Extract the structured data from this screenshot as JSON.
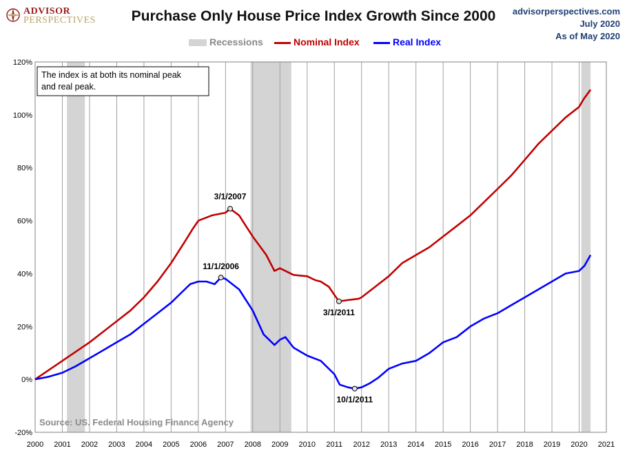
{
  "header": {
    "brand_line1": "ADVISOR",
    "brand_line2": "PERSPECTIVES",
    "title": "Purchase Only House Price Index Growth Since 2000",
    "site": "advisorperspectives.com",
    "date": "July 2020",
    "as_of": "As of May 2020"
  },
  "legend": {
    "recessions": "Recessions",
    "nominal": "Nominal Index",
    "real": "Real Index"
  },
  "colors": {
    "nominal": "#c00000",
    "real": "#0000ff",
    "recession": "#d4d4d4",
    "grid": "#a0a0a0",
    "brand_red": "#9b1c1c",
    "brand_gold": "#b9a36a",
    "site_blue": "#1f3f73"
  },
  "annotation_box": "The index is at both its nominal peak and real peak.",
  "source": "Source: US. Federal Housing Finance Agency",
  "chart_data": {
    "type": "line",
    "title": "Purchase Only House Price Index Growth Since 2000",
    "xlim": [
      2000,
      2021
    ],
    "ylim": [
      -20,
      120
    ],
    "x_ticks": [
      2000,
      2001,
      2002,
      2003,
      2004,
      2005,
      2006,
      2007,
      2008,
      2009,
      2010,
      2011,
      2012,
      2013,
      2014,
      2015,
      2016,
      2017,
      2018,
      2019,
      2020,
      2021
    ],
    "y_ticks": [
      -20,
      0,
      20,
      40,
      60,
      80,
      100,
      120
    ],
    "y_tick_labels": [
      "-20%",
      "0%",
      "20%",
      "40%",
      "60%",
      "80%",
      "100%",
      "120%"
    ],
    "grid": "vertical",
    "legend_position": "top-center",
    "recessions": [
      [
        2001.17,
        2001.83
      ],
      [
        2007.92,
        2009.42
      ],
      [
        2020.08,
        2020.42
      ]
    ],
    "series": [
      {
        "name": "Nominal Index",
        "x": [
          2000.0,
          2000.5,
          2001.0,
          2001.5,
          2002.0,
          2002.5,
          2003.0,
          2003.5,
          2004.0,
          2004.5,
          2005.0,
          2005.5,
          2005.8,
          2006.0,
          2006.5,
          2007.0,
          2007.17,
          2007.5,
          2007.75,
          2008.0,
          2008.5,
          2008.8,
          2009.0,
          2009.5,
          2010.0,
          2010.3,
          2010.5,
          2010.8,
          2011.0,
          2011.17,
          2011.5,
          2011.9,
          2012.0,
          2012.5,
          2013.0,
          2013.5,
          2014.0,
          2014.5,
          2015.0,
          2015.5,
          2016.0,
          2016.5,
          2017.0,
          2017.5,
          2018.0,
          2018.5,
          2019.0,
          2019.5,
          2020.0,
          2020.17,
          2020.42
        ],
        "y": [
          0,
          3.5,
          7,
          10.5,
          14,
          18,
          22,
          26,
          31,
          37,
          44,
          52,
          57,
          60,
          62,
          63,
          64.5,
          62,
          58,
          54,
          47,
          41,
          42,
          39.5,
          39,
          37.5,
          37,
          35,
          32,
          29.5,
          30,
          30.5,
          31,
          35,
          39,
          44,
          47,
          50,
          54,
          58,
          62,
          67,
          72,
          77,
          83,
          89,
          94,
          99,
          103,
          106,
          109.5
        ]
      },
      {
        "name": "Real Index",
        "x": [
          2000.0,
          2000.5,
          2001.0,
          2001.5,
          2002.0,
          2002.5,
          2003.0,
          2003.5,
          2004.0,
          2004.5,
          2005.0,
          2005.5,
          2005.7,
          2006.0,
          2006.3,
          2006.6,
          2006.83,
          2007.0,
          2007.5,
          2008.0,
          2008.4,
          2008.8,
          2009.0,
          2009.2,
          2009.5,
          2010.0,
          2010.5,
          2011.0,
          2011.2,
          2011.5,
          2011.75,
          2012.0,
          2012.3,
          2012.6,
          2013.0,
          2013.5,
          2014.0,
          2014.5,
          2015.0,
          2015.5,
          2016.0,
          2016.5,
          2017.0,
          2017.5,
          2018.0,
          2018.5,
          2019.0,
          2019.5,
          2020.0,
          2020.2,
          2020.42
        ],
        "y": [
          0,
          1,
          2.5,
          5,
          8,
          11,
          14,
          17,
          21,
          25,
          29,
          34,
          36,
          37,
          37,
          36,
          38.5,
          38,
          34,
          26,
          17,
          13,
          15,
          16,
          12,
          9,
          7,
          2,
          -2,
          -3,
          -3.5,
          -3,
          -1.5,
          0.5,
          4,
          6,
          7,
          10,
          14,
          16,
          20,
          23,
          25,
          28,
          31,
          34,
          37,
          40,
          41,
          43,
          47
        ]
      }
    ],
    "annotations": [
      {
        "label": "3/1/2007",
        "x": 2007.17,
        "y": 64.5,
        "series": "Nominal Index"
      },
      {
        "label": "11/1/2006",
        "x": 2006.83,
        "y": 38.5,
        "series": "Real Index"
      },
      {
        "label": "3/1/2011",
        "x": 2011.17,
        "y": 29.5,
        "series": "Nominal Index"
      },
      {
        "label": "10/1/2011",
        "x": 2011.75,
        "y": -3.5,
        "series": "Real Index"
      }
    ]
  }
}
